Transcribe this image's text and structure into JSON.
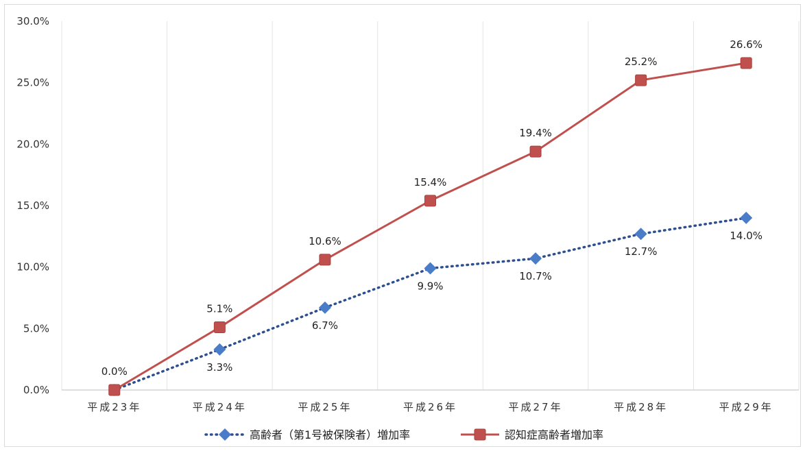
{
  "chart_data": {
    "type": "line",
    "categories": [
      "平成23年",
      "平成24年",
      "平成25年",
      "平成26年",
      "平成27年",
      "平成28年",
      "平成29年"
    ],
    "ylim": [
      0,
      30
    ],
    "yticks": [
      "0.0%",
      "5.0%",
      "10.0%",
      "15.0%",
      "20.0%",
      "25.0%",
      "30.0%"
    ],
    "grid": "vertical",
    "legend_position": "bottom",
    "series": [
      {
        "name": "高齢者（第1号被保険者）増加率",
        "values": [
          0.0,
          3.3,
          6.7,
          9.9,
          10.7,
          12.7,
          14.0
        ],
        "labels": [
          "",
          "3.3%",
          "6.7%",
          "9.9%",
          "10.7%",
          "12.7%",
          "14.0%"
        ],
        "color": "#2e4f8f",
        "marker_color": "#4a7cc7",
        "style": "dotted",
        "marker": "diamond"
      },
      {
        "name": "認知症高齢者増加率",
        "values": [
          0.0,
          5.1,
          10.6,
          15.4,
          19.4,
          25.2,
          26.6
        ],
        "labels": [
          "0.0%",
          "5.1%",
          "10.6%",
          "15.4%",
          "19.4%",
          "25.2%",
          "26.6%"
        ],
        "color": "#c0504d",
        "marker_color": "#c0504d",
        "style": "solid",
        "marker": "square"
      }
    ]
  }
}
